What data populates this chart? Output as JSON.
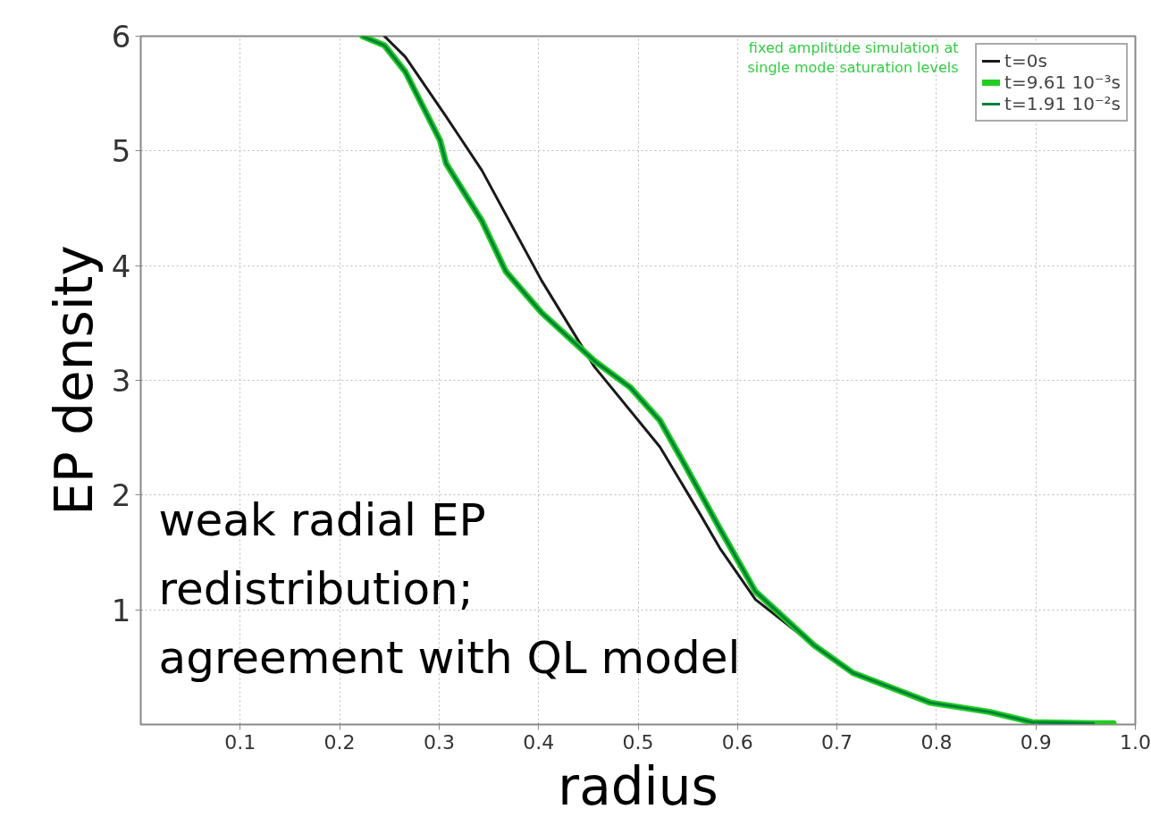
{
  "chart_data": {
    "type": "line",
    "xlabel": "radius",
    "ylabel": "EP density",
    "xlim": [
      0,
      1
    ],
    "ylim": [
      0,
      6
    ],
    "xticks": [
      0.1,
      0.2,
      0.3,
      0.4,
      0.5,
      0.6,
      0.7,
      0.8,
      0.9,
      {
        "value": 1,
        "label": "1.0"
      }
    ],
    "yticks": [
      1,
      2,
      3,
      4,
      5,
      6
    ],
    "grid": true,
    "legend": "top right",
    "line_style": "solid",
    "marker": "none",
    "annotations": [
      "fixed amplitude simulation at single mode saturation levels",
      "weak radial EP redistribution; agreement with QL model"
    ],
    "series": [
      {
        "name": "t=0s",
        "color": "#1a1a1a",
        "x": [
          0.245,
          0.266,
          0.307,
          0.343,
          0.403,
          0.456,
          0.522,
          0.562,
          0.582,
          0.618,
          0.677,
          0.716,
          0.794,
          0.853,
          0.896,
          0.958
        ],
        "values": [
          6.0,
          5.82,
          5.3,
          4.83,
          3.87,
          3.12,
          2.42,
          1.84,
          1.54,
          1.09,
          0.69,
          0.45,
          0.19,
          0.11,
          0.02,
          0.01
        ]
      },
      {
        "name": "t=9.61 10⁻³s",
        "color": "#22cc22",
        "x": [
          0.223,
          0.245,
          0.266,
          0.301,
          0.307,
          0.343,
          0.367,
          0.403,
          0.456,
          0.492,
          0.522,
          0.546,
          0.582,
          0.618,
          0.677,
          0.716,
          0.794,
          0.853,
          0.896,
          0.958,
          0.978
        ],
        "values": [
          6.0,
          5.92,
          5.69,
          5.09,
          4.89,
          4.39,
          3.95,
          3.59,
          3.17,
          2.94,
          2.65,
          2.28,
          1.71,
          1.16,
          0.69,
          0.45,
          0.19,
          0.11,
          0.02,
          0.01,
          0.01
        ]
      },
      {
        "name": "t=1.91 10⁻²s",
        "color": "#00803a",
        "x": [
          0.223,
          0.245,
          0.266,
          0.301,
          0.307,
          0.343,
          0.367,
          0.403,
          0.456,
          0.492,
          0.522,
          0.546,
          0.582,
          0.618,
          0.677,
          0.716,
          0.794,
          0.853,
          0.896,
          0.958
        ],
        "values": [
          6.0,
          5.92,
          5.69,
          5.09,
          4.89,
          4.39,
          3.95,
          3.59,
          3.17,
          2.94,
          2.65,
          2.28,
          1.71,
          1.16,
          0.69,
          0.45,
          0.19,
          0.11,
          0.02,
          0.01
        ]
      }
    ]
  }
}
